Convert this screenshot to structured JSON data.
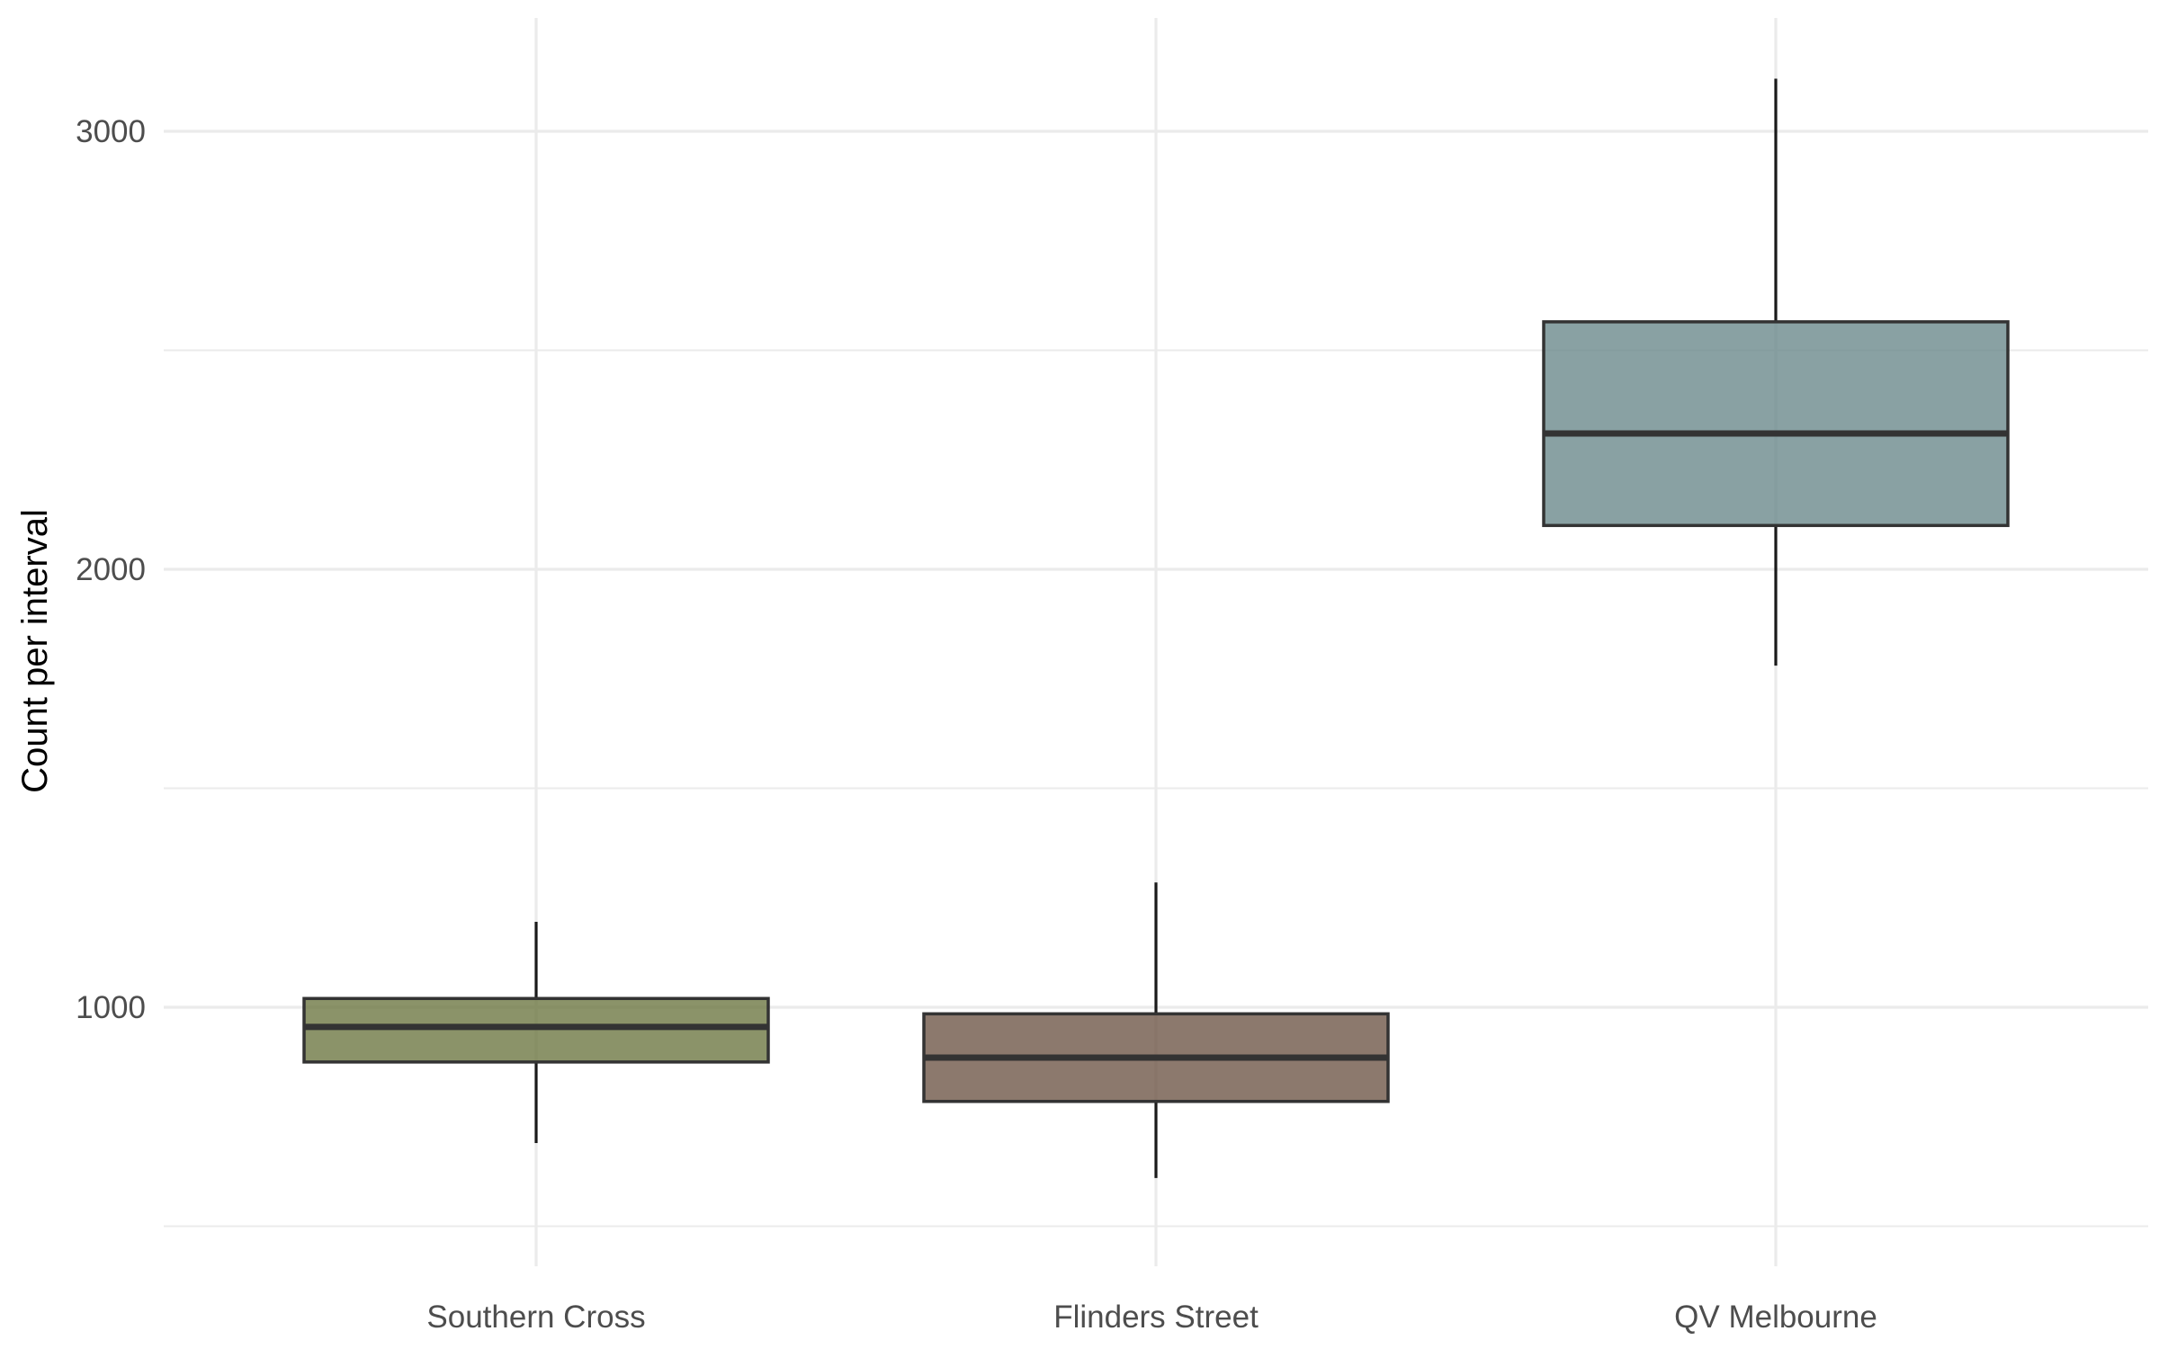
{
  "chart_data": {
    "type": "box",
    "title": "",
    "xlabel": "",
    "ylabel": "Count per interval",
    "ylim": [
      420,
      3260
    ],
    "y_ticks": [
      1000,
      2000,
      3000
    ],
    "y_tick_labels": [
      "1000",
      "2000",
      "3000"
    ],
    "grid": true,
    "legend": "none",
    "categories": [
      "Southern Cross",
      "Flinders Street",
      "QV Melbourne"
    ],
    "boxes": [
      {
        "category": "Southern Cross",
        "whisker_low": 690,
        "q1": 875,
        "median": 955,
        "q3": 1020,
        "whisker_high": 1195,
        "color": "#6e7844"
      },
      {
        "category": "Flinders Street",
        "whisker_low": 610,
        "q1": 785,
        "median": 885,
        "q3": 985,
        "whisker_high": 1285,
        "color": "#6f5849"
      },
      {
        "category": "QV Melbourne",
        "whisker_low": 1780,
        "q1": 2100,
        "median": 2310,
        "q3": 2565,
        "whisker_high": 3120,
        "color": "#6c8a8c"
      }
    ]
  },
  "colors": {
    "grid": "#ebebeb",
    "box_outline": "#333333",
    "whisker": "#1a1a1a"
  }
}
